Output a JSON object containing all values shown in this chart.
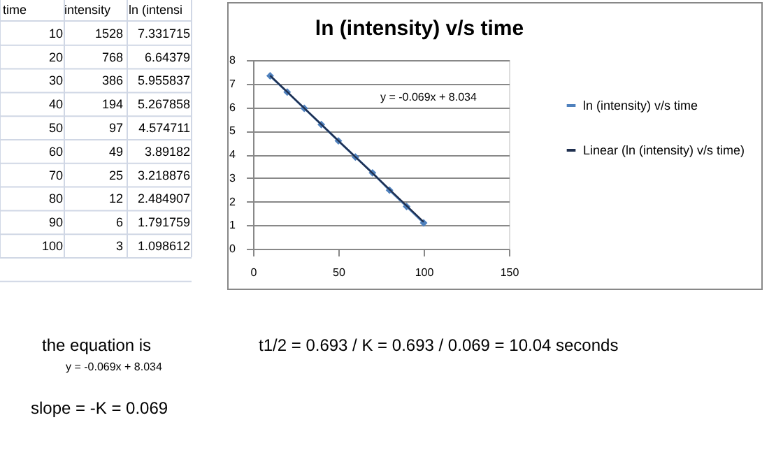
{
  "chart_data": {
    "type": "line",
    "title": "ln (intensity) v/s time",
    "x": [
      10,
      20,
      30,
      40,
      50,
      60,
      70,
      80,
      90,
      100
    ],
    "series": [
      {
        "name": "ln (intensity) v/s time",
        "marker": "diamond",
        "color": "#4f81bd",
        "values": [
          7.331715,
          6.64379,
          5.955837,
          5.267858,
          4.574711,
          3.89182,
          3.218876,
          2.484907,
          1.791759,
          1.098612
        ]
      },
      {
        "name": "Linear (ln (intensity) v/s time)",
        "marker": "none",
        "color": "#1f2f4f",
        "x": [
          10,
          100
        ],
        "values": [
          7.344,
          1.134
        ]
      }
    ],
    "xlim": [
      0,
      150
    ],
    "xticks": [
      0,
      50,
      100,
      150
    ],
    "ylim": [
      0,
      8
    ],
    "yticks": [
      0,
      1,
      2,
      3,
      4,
      5,
      6,
      7,
      8
    ],
    "grid": "y",
    "legend": "right",
    "annotations": [
      "time",
      "intensity",
      "ln (intensi",
      "10",
      "1528",
      "7.331715",
      "20",
      "768",
      "6.64379",
      "30",
      "386",
      "5.955837",
      "40",
      "194",
      "5.267858",
      "50",
      "97",
      "4.574711",
      "60",
      "49",
      "3.89182",
      "70",
      "25",
      "3.218876",
      "80",
      "12",
      "2.484907",
      "90",
      "6",
      "1.791759",
      "100",
      "3",
      "1.098612",
      "y = -0.069x + 8.034",
      "the equation is",
      "y = -0.069x + 8.034",
      "slope = -K = 0.069",
      "t1/2 = 0.693 / K = 0.693 / 0.069 = 10.04 seconds"
    ]
  }
}
